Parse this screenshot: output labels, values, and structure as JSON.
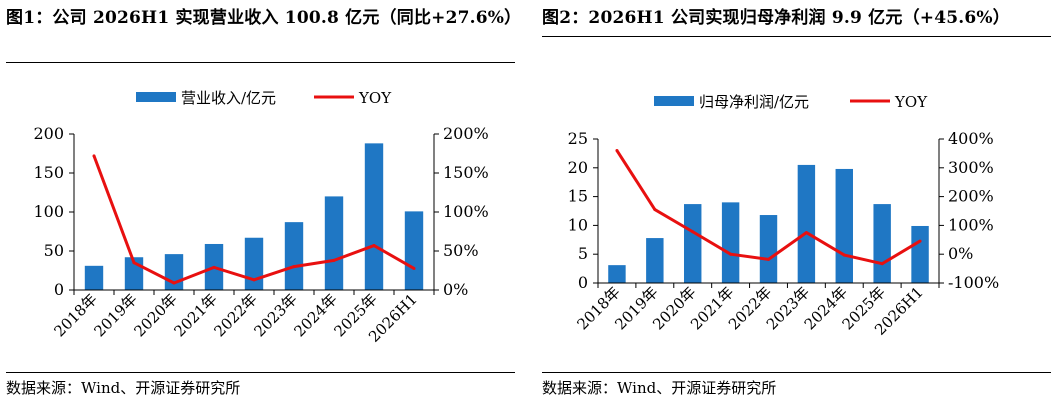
{
  "charts": [
    {
      "title": "图1：公司 2026H1 实现营业收入 100.8 亿元（同比+27.6%）",
      "source": "数据来源：Wind、开源证券研究所",
      "bar_color": "#1f77c4",
      "line_color": "#e81010",
      "chart_data": {
        "type": "bar",
        "categories": [
          "2018年",
          "2019年",
          "2020年",
          "2021年",
          "2022年",
          "2023年",
          "2024年",
          "2025年",
          "2026H1"
        ],
        "series": [
          {
            "name": "营业收入/亿元",
            "type": "bar",
            "axis": "left",
            "values": [
              31,
              42,
              46,
              59,
              67,
              87,
              120,
              188,
              100.8
            ]
          },
          {
            "name": "YOY",
            "type": "line",
            "axis": "right",
            "values": [
              172,
              35,
              9,
              29,
              13,
              30,
              38,
              57,
              27.6
            ]
          }
        ],
        "y_left": {
          "min": 0,
          "max": 200,
          "ticks": [
            0,
            50,
            100,
            150,
            200
          ],
          "tick_labels": [
            "0",
            "50",
            "100",
            "150",
            "200"
          ]
        },
        "y_right": {
          "min": 0,
          "max": 200,
          "ticks": [
            0,
            50,
            100,
            150,
            200
          ],
          "tick_labels": [
            "0%",
            "50%",
            "100%",
            "150%",
            "200%"
          ]
        },
        "legend": "top",
        "grid": false
      }
    },
    {
      "title": "图2：2026H1 公司实现归母净利润 9.9 亿元（+45.6%）",
      "source": "数据来源：Wind、开源证券研究所",
      "bar_color": "#1f77c4",
      "line_color": "#e81010",
      "chart_data": {
        "type": "bar",
        "categories": [
          "2018年",
          "2019年",
          "2020年",
          "2021年",
          "2022年",
          "2023年",
          "2024年",
          "2025年",
          "2026H1"
        ],
        "series": [
          {
            "name": "归母净利润/亿元",
            "type": "bar",
            "axis": "left",
            "values": [
              3.1,
              7.8,
              13.7,
              14.0,
              11.8,
              20.5,
              19.8,
              13.7,
              9.9
            ]
          },
          {
            "name": "YOY",
            "type": "line",
            "axis": "right",
            "values": [
              360,
              155,
              78,
              0,
              -18,
              75,
              -3,
              -33,
              45.6
            ]
          }
        ],
        "y_left": {
          "min": 0,
          "max": 25,
          "ticks": [
            0,
            5,
            10,
            15,
            20,
            25
          ],
          "tick_labels": [
            "0",
            "5",
            "10",
            "15",
            "20",
            "25"
          ]
        },
        "y_right": {
          "min": -100,
          "max": 400,
          "ticks": [
            -100,
            0,
            100,
            200,
            300,
            400
          ],
          "tick_labels": [
            "-100%",
            "0%",
            "100%",
            "200%",
            "300%",
            "400%"
          ]
        },
        "legend": "top",
        "grid": false
      }
    }
  ]
}
